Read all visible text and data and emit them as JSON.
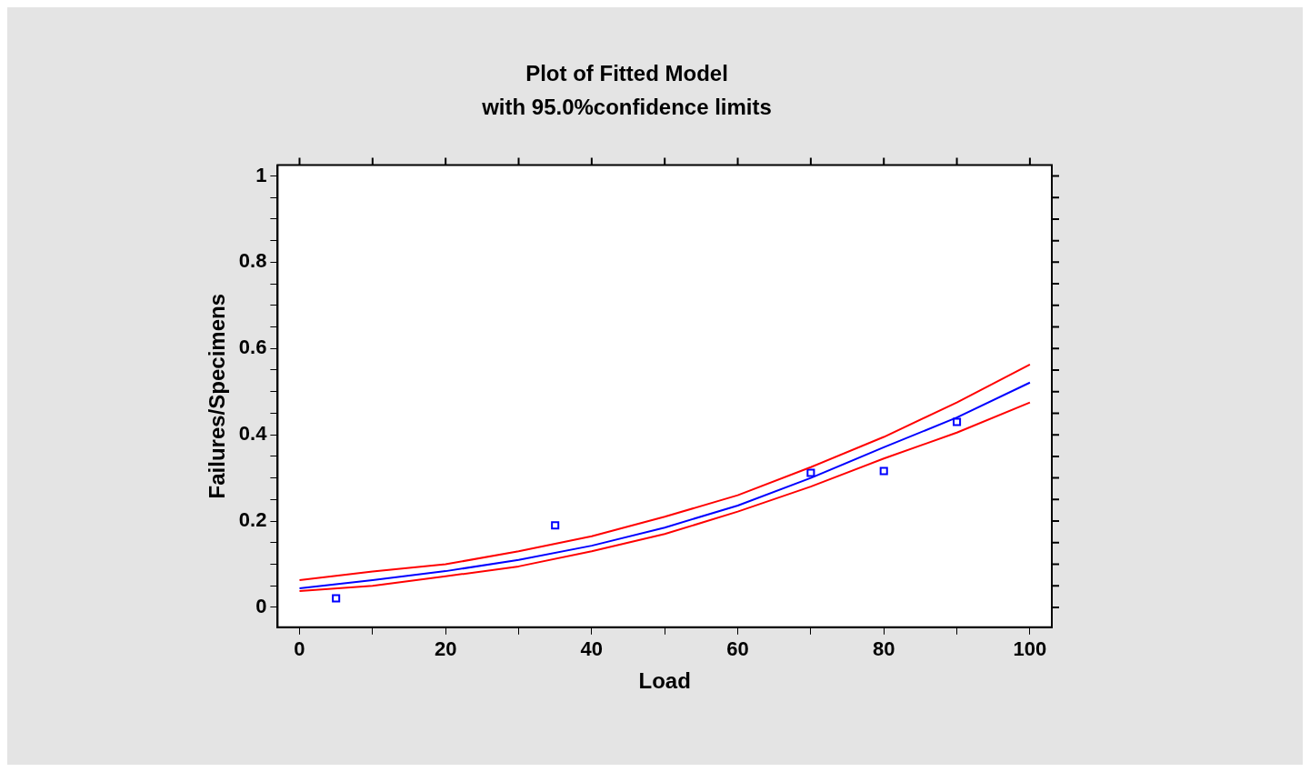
{
  "chart_data": {
    "type": "line",
    "title": "Plot of Fitted Model",
    "subtitle": "with 95.0%confidence limits",
    "xlabel": "Load",
    "ylabel": "Failures/Specimens",
    "xlim": [
      -3,
      103
    ],
    "ylim": [
      -0.046,
      1.025
    ],
    "xticks": [
      0,
      {
        "value": 10,
        "label": null
      },
      20,
      {
        "value": 30,
        "label": null
      },
      40,
      {
        "value": 50,
        "label": null
      },
      60,
      {
        "value": 70,
        "label": null
      },
      80,
      {
        "value": 90,
        "label": null
      },
      100
    ],
    "yticks": [
      0,
      {
        "value": 0.05,
        "label": null
      },
      {
        "value": 0.1,
        "label": null
      },
      {
        "value": 0.15,
        "label": null
      },
      0.2,
      {
        "value": 0.25,
        "label": null
      },
      {
        "value": 0.3,
        "label": null
      },
      {
        "value": 0.35,
        "label": null
      },
      0.4,
      {
        "value": 0.45,
        "label": null
      },
      {
        "value": 0.5,
        "label": null
      },
      {
        "value": 0.55,
        "label": null
      },
      0.6,
      {
        "value": 0.65,
        "label": null
      },
      {
        "value": 0.7,
        "label": null
      },
      {
        "value": 0.75,
        "label": null
      },
      0.8,
      {
        "value": 0.85,
        "label": null
      },
      {
        "value": 0.9,
        "label": null
      },
      {
        "value": 0.95,
        "label": null
      },
      1
    ],
    "grid": false,
    "legend": false,
    "series": [
      {
        "type": "line",
        "color": "#ff0000",
        "x": [
          0,
          10,
          20,
          30,
          40,
          50,
          60,
          70,
          80,
          90,
          100
        ],
        "values": [
          0.063,
          0.083,
          0.1,
          0.13,
          0.165,
          0.21,
          0.26,
          0.325,
          0.395,
          0.475,
          0.563
        ]
      },
      {
        "type": "line",
        "color": "#0000ff",
        "x": [
          0,
          10,
          20,
          30,
          40,
          50,
          60,
          70,
          80,
          90,
          100
        ],
        "values": [
          0.044,
          0.063,
          0.084,
          0.11,
          0.143,
          0.185,
          0.236,
          0.3,
          0.371,
          0.44,
          0.521
        ]
      },
      {
        "type": "line",
        "color": "#ff0000",
        "x": [
          0,
          10,
          20,
          30,
          40,
          50,
          60,
          70,
          80,
          90,
          100
        ],
        "values": [
          0.038,
          0.05,
          0.072,
          0.095,
          0.13,
          0.17,
          0.222,
          0.28,
          0.345,
          0.405,
          0.475
        ]
      },
      {
        "type": "scatter",
        "color": "#0000ff",
        "marker": "square",
        "x": [
          5,
          35,
          70,
          80,
          90
        ],
        "values": [
          0.021,
          0.19,
          0.312,
          0.316,
          0.43
        ]
      }
    ]
  }
}
